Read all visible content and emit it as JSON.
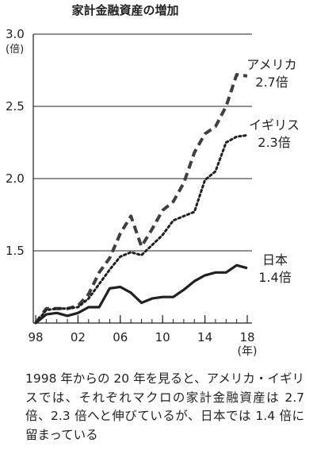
{
  "chart_data": {
    "type": "line",
    "title": "家計金融資産の増加",
    "ylabel": "(倍)",
    "xlabel": "(年)",
    "ylim": [
      1.0,
      3.0
    ],
    "xlim": [
      1998,
      2018
    ],
    "grid": "horizontal",
    "yticks": [
      {
        "value": 1.5,
        "label": "1.5"
      },
      {
        "value": 2.0,
        "label": "2.0"
      },
      {
        "value": 2.5,
        "label": "2.5"
      },
      {
        "value": 3.0,
        "label": "3.0"
      }
    ],
    "xticks": [
      {
        "value": 1998,
        "label": "98"
      },
      {
        "value": 2002,
        "label": "02"
      },
      {
        "value": 2006,
        "label": "06"
      },
      {
        "value": 2010,
        "label": "10"
      },
      {
        "value": 2014,
        "label": "14"
      },
      {
        "value": 2018,
        "label": "18"
      }
    ],
    "x": [
      1998,
      1999,
      2000,
      2001,
      2002,
      2003,
      2004,
      2005,
      2006,
      2007,
      2008,
      2009,
      2010,
      2011,
      2012,
      2013,
      2014,
      2015,
      2016,
      2017,
      2018
    ],
    "series": [
      {
        "name": "アメリカ",
        "end_label": "2.7倍",
        "style": "dashed",
        "values": [
          1.0,
          1.1,
          1.1,
          1.1,
          1.12,
          1.2,
          1.35,
          1.45,
          1.62,
          1.74,
          1.53,
          1.65,
          1.78,
          1.84,
          1.97,
          2.18,
          2.31,
          2.36,
          2.5,
          2.72,
          2.71
        ]
      },
      {
        "name": "イギリス",
        "end_label": "2.3倍",
        "style": "dotted",
        "values": [
          1.0,
          1.09,
          1.1,
          1.1,
          1.11,
          1.17,
          1.27,
          1.37,
          1.46,
          1.49,
          1.47,
          1.54,
          1.61,
          1.71,
          1.74,
          1.77,
          1.99,
          2.05,
          2.25,
          2.29,
          2.3
        ]
      },
      {
        "name": "日本",
        "end_label": "1.4倍",
        "style": "solid",
        "values": [
          1.0,
          1.06,
          1.07,
          1.05,
          1.07,
          1.11,
          1.11,
          1.24,
          1.25,
          1.21,
          1.14,
          1.17,
          1.18,
          1.18,
          1.23,
          1.29,
          1.33,
          1.35,
          1.35,
          1.4,
          1.38
        ]
      }
    ]
  },
  "caption": "1998 年からの 20 年を見ると、アメリカ・イギリスでは、それぞれマクロの家計金融資産は 2.7 倍、2.3 倍へと伸びているが、日本では 1.4 倍に留まっている",
  "colors": {
    "ink": "#231f20",
    "line": "#3f3f3f",
    "grid": "#231f20"
  }
}
